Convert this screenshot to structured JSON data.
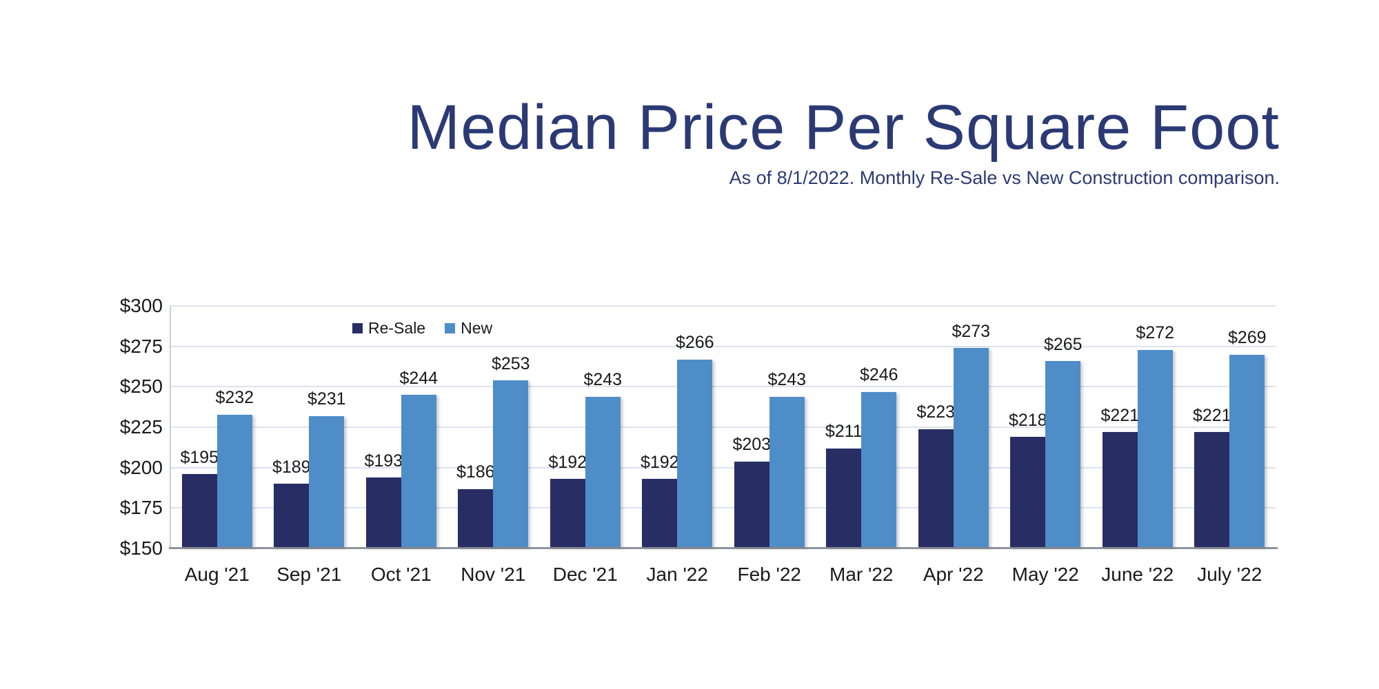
{
  "header": {
    "title": "Median Price Per Square Foot",
    "subtitle": "As of 8/1/2022. Monthly Re-Sale vs New Construction comparison."
  },
  "chart_data": {
    "type": "bar",
    "title": "Median Price Per Square Foot",
    "subtitle": "As of 8/1/2022. Monthly Re-Sale vs New Construction comparison.",
    "categories": [
      "Aug '21",
      "Sep '21",
      "Oct '21",
      "Nov '21",
      "Dec '21",
      "Jan '22",
      "Feb '22",
      "Mar '22",
      "Apr '22",
      "May '22",
      "June '22",
      "July '22"
    ],
    "series": [
      {
        "name": "Re-Sale",
        "color": "#282E63",
        "values": [
          195,
          189,
          193,
          186,
          192,
          192,
          203,
          211,
          223,
          218,
          221,
          221
        ]
      },
      {
        "name": "New",
        "color": "#4F8DC9",
        "values": [
          232,
          231,
          244,
          253,
          243,
          266,
          243,
          246,
          273,
          265,
          272,
          269
        ]
      }
    ],
    "value_prefix": "$",
    "data_labels": [
      "$195",
      "$232",
      "$189",
      "$231",
      "$193",
      "$244",
      "$186",
      "$253",
      "$192",
      "$243",
      "$192",
      "$266",
      "$203",
      "$243",
      "$211",
      "$246",
      "$223",
      "$273",
      "$218",
      "$265",
      "$221",
      "$272",
      "$221",
      "$269"
    ],
    "ylim": [
      150,
      300
    ],
    "ytick_values": [
      300,
      275,
      250,
      225,
      200,
      175,
      150
    ],
    "ytick_labels": [
      "$300",
      "$275",
      "$250",
      "$225",
      "$200",
      "$175",
      "$150"
    ],
    "grid": true,
    "legend_position": "top-left-inside",
    "xlabel": "",
    "ylabel": ""
  },
  "colors": {
    "title_navy": "#2B3A74",
    "bar_resale": "#282E63",
    "bar_new": "#4F8DC9",
    "gridline": "#DDE2EF",
    "axis_left": "#C9CDD6",
    "axis_baseline": "#8E939B",
    "label_text": "#1A1A1A",
    "background": "#FFFFFF"
  }
}
